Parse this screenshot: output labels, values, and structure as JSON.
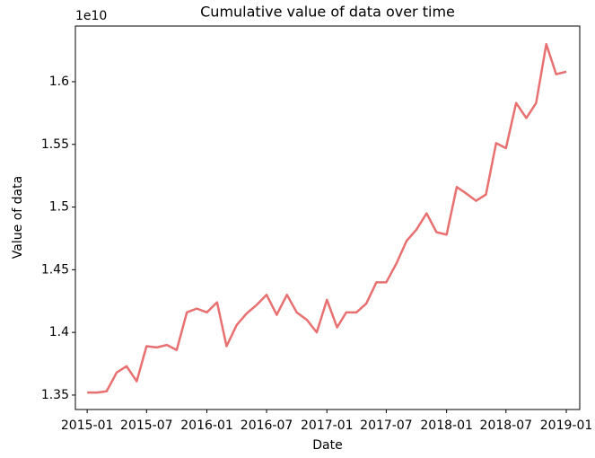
{
  "chart_data": {
    "type": "line",
    "title": "Cumulative value of data over time",
    "x_label": "Date",
    "y_label": "Value of data",
    "y_offset_label": "1e10",
    "x": [
      "2015-01",
      "2015-02",
      "2015-03",
      "2015-04",
      "2015-05",
      "2015-06",
      "2015-07",
      "2015-08",
      "2015-09",
      "2015-10",
      "2015-11",
      "2015-12",
      "2016-01",
      "2016-02",
      "2016-03",
      "2016-04",
      "2016-05",
      "2016-06",
      "2016-07",
      "2016-08",
      "2016-09",
      "2016-10",
      "2016-11",
      "2016-12",
      "2017-01",
      "2017-02",
      "2017-03",
      "2017-04",
      "2017-05",
      "2017-06",
      "2017-07",
      "2017-08",
      "2017-09",
      "2017-10",
      "2017-11",
      "2017-12",
      "2018-01",
      "2018-02",
      "2018-03",
      "2018-04",
      "2018-05",
      "2018-06",
      "2018-07",
      "2018-08",
      "2018-09",
      "2018-10",
      "2018-11",
      "2018-12",
      "2019-01"
    ],
    "series": [
      {
        "name": "Value of data",
        "color": "#e87070",
        "values": [
          1.352,
          1.352,
          1.353,
          1.368,
          1.373,
          1.361,
          1.389,
          1.388,
          1.39,
          1.386,
          1.416,
          1.419,
          1.416,
          1.424,
          1.389,
          1.406,
          1.415,
          1.422,
          1.43,
          1.414,
          1.43,
          1.416,
          1.41,
          1.4,
          1.426,
          1.404,
          1.416,
          1.416,
          1.423,
          1.44,
          1.44,
          1.455,
          1.473,
          1.482,
          1.495,
          1.48,
          1.478,
          1.516,
          1.511,
          1.505,
          1.51,
          1.551,
          1.547,
          1.583,
          1.571,
          1.583,
          1.63,
          1.606,
          1.608
        ]
      }
    ],
    "xlim": [
      "2014-11-26",
      "2019-02-11"
    ],
    "xticks": [
      "2015-01",
      "2015-07",
      "2016-01",
      "2016-07",
      "2017-01",
      "2017-07",
      "2018-01",
      "2018-07",
      "2019-01"
    ],
    "ylim": [
      1.3385,
      1.6444
    ],
    "yticks": [
      1.35,
      1.4,
      1.45,
      1.5,
      1.55,
      1.6
    ],
    "grid": false
  }
}
